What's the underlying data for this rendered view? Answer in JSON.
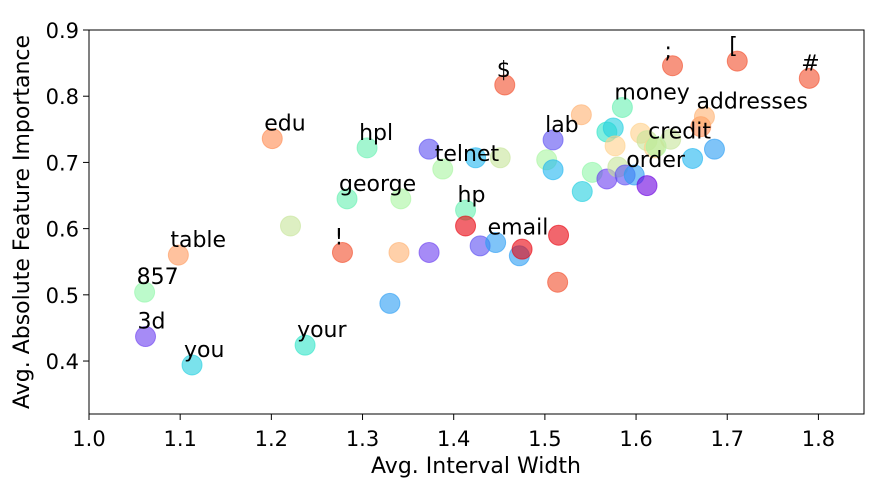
{
  "chart_data": {
    "type": "scatter",
    "title": "",
    "xlabel": "Avg. Interval Width",
    "ylabel": "Avg. Absolute Feature Importance",
    "xlim": [
      1.0,
      1.85
    ],
    "ylim": [
      0.32,
      0.9
    ],
    "xticks": [
      "1.0",
      "1.1",
      "1.2",
      "1.3",
      "1.4",
      "1.5",
      "1.6",
      "1.7",
      "1.8"
    ],
    "xtick_values": [
      1.0,
      1.1,
      1.2,
      1.3,
      1.4,
      1.5,
      1.6,
      1.7,
      1.8
    ],
    "yticks": [
      "0.4",
      "0.5",
      "0.6",
      "0.7",
      "0.8",
      "0.9"
    ],
    "ytick_values": [
      0.4,
      0.5,
      0.6,
      0.7,
      0.8,
      0.9
    ],
    "grid": false,
    "legend": "none",
    "marker_alpha": 0.6,
    "points": [
      {
        "x": 1.062,
        "y": 0.437,
        "color": "#6a3df0",
        "label": "3d"
      },
      {
        "x": 1.061,
        "y": 0.504,
        "color": "#8ff7a8",
        "label": "857"
      },
      {
        "x": 1.098,
        "y": 0.56,
        "color": "#ff9a5e",
        "label": "table"
      },
      {
        "x": 1.113,
        "y": 0.394,
        "color": "#22cfe0",
        "label": "you"
      },
      {
        "x": 1.201,
        "y": 0.736,
        "color": "#ff8a50",
        "label": "edu"
      },
      {
        "x": 1.221,
        "y": 0.604,
        "color": "#c7e59a",
        "label": ""
      },
      {
        "x": 1.237,
        "y": 0.424,
        "color": "#2ee5c8",
        "label": "your"
      },
      {
        "x": 1.278,
        "y": 0.564,
        "color": "#f24c2a",
        "label": "!"
      },
      {
        "x": 1.283,
        "y": 0.645,
        "color": "#66f0b0",
        "label": "george"
      },
      {
        "x": 1.305,
        "y": 0.722,
        "color": "#66f0b0",
        "label": "hpl"
      },
      {
        "x": 1.33,
        "y": 0.487,
        "color": "#2a9df4",
        "label": ""
      },
      {
        "x": 1.34,
        "y": 0.564,
        "color": "#ffb070",
        "label": ""
      },
      {
        "x": 1.342,
        "y": 0.645,
        "color": "#a8f5a0",
        "label": ""
      },
      {
        "x": 1.373,
        "y": 0.72,
        "color": "#5b4ef2",
        "label": ""
      },
      {
        "x": 1.373,
        "y": 0.564,
        "color": "#6a3df0",
        "label": ""
      },
      {
        "x": 1.388,
        "y": 0.69,
        "color": "#a8f5a0",
        "label": "telnet"
      },
      {
        "x": 1.413,
        "y": 0.628,
        "color": "#66f0b0",
        "label": "hp"
      },
      {
        "x": 1.413,
        "y": 0.604,
        "color": "#e8000b",
        "label": ""
      },
      {
        "x": 1.424,
        "y": 0.707,
        "color": "#1fb6f0",
        "label": ""
      },
      {
        "x": 1.429,
        "y": 0.574,
        "color": "#5b4ef2",
        "label": ""
      },
      {
        "x": 1.446,
        "y": 0.579,
        "color": "#2a9df4",
        "label": "email"
      },
      {
        "x": 1.456,
        "y": 0.817,
        "color": "#f24c2a",
        "label": "$"
      },
      {
        "x": 1.451,
        "y": 0.707,
        "color": "#c7e59a",
        "label": ""
      },
      {
        "x": 1.472,
        "y": 0.559,
        "color": "#2a9df4",
        "label": ""
      },
      {
        "x": 1.475,
        "y": 0.569,
        "color": "#e8000b",
        "label": ""
      },
      {
        "x": 1.502,
        "y": 0.704,
        "color": "#a8f5a0",
        "label": ""
      },
      {
        "x": 1.509,
        "y": 0.734,
        "color": "#5b4ef2",
        "label": "lab"
      },
      {
        "x": 1.509,
        "y": 0.689,
        "color": "#1fb6f0",
        "label": ""
      },
      {
        "x": 1.514,
        "y": 0.519,
        "color": "#f24c2a",
        "label": ""
      },
      {
        "x": 1.515,
        "y": 0.59,
        "color": "#e8000b",
        "label": ""
      },
      {
        "x": 1.54,
        "y": 0.772,
        "color": "#ffb070",
        "label": ""
      },
      {
        "x": 1.541,
        "y": 0.656,
        "color": "#22cfe0",
        "label": ""
      },
      {
        "x": 1.552,
        "y": 0.685,
        "color": "#8ff7a8",
        "label": ""
      },
      {
        "x": 1.568,
        "y": 0.746,
        "color": "#2ee5c8",
        "label": ""
      },
      {
        "x": 1.568,
        "y": 0.675,
        "color": "#6a3df0",
        "label": ""
      },
      {
        "x": 1.575,
        "y": 0.752,
        "color": "#22cfe0",
        "label": ""
      },
      {
        "x": 1.577,
        "y": 0.725,
        "color": "#ffd08a",
        "label": ""
      },
      {
        "x": 1.58,
        "y": 0.693,
        "color": "#c7e59a",
        "label": ""
      },
      {
        "x": 1.585,
        "y": 0.783,
        "color": "#66f0b0",
        "label": "money"
      },
      {
        "x": 1.588,
        "y": 0.681,
        "color": "#5b4ef2",
        "label": ""
      },
      {
        "x": 1.598,
        "y": 0.681,
        "color": "#2a9df4",
        "label": "order"
      },
      {
        "x": 1.605,
        "y": 0.744,
        "color": "#ffd08a",
        "label": ""
      },
      {
        "x": 1.612,
        "y": 0.733,
        "color": "#c7e59a",
        "label": ""
      },
      {
        "x": 1.612,
        "y": 0.665,
        "color": "#6a00e0",
        "label": ""
      },
      {
        "x": 1.62,
        "y": 0.722,
        "color": "#ffd08a",
        "label": ""
      },
      {
        "x": 1.622,
        "y": 0.724,
        "color": "#a8f5a0",
        "label": "credit"
      },
      {
        "x": 1.638,
        "y": 0.735,
        "color": "#c7e59a",
        "label": ""
      },
      {
        "x": 1.64,
        "y": 0.846,
        "color": "#f24c2a",
        "label": ";"
      },
      {
        "x": 1.662,
        "y": 0.706,
        "color": "#1fb6f0",
        "label": ""
      },
      {
        "x": 1.671,
        "y": 0.754,
        "color": "#ff8a50",
        "label": ""
      },
      {
        "x": 1.675,
        "y": 0.769,
        "color": "#ffb070",
        "label": "addresses"
      },
      {
        "x": 1.686,
        "y": 0.72,
        "color": "#2a9df4",
        "label": ""
      },
      {
        "x": 1.711,
        "y": 0.853,
        "color": "#f24c2a",
        "label": "["
      },
      {
        "x": 1.79,
        "y": 0.827,
        "color": "#f24c2a",
        "label": "#"
      }
    ]
  }
}
